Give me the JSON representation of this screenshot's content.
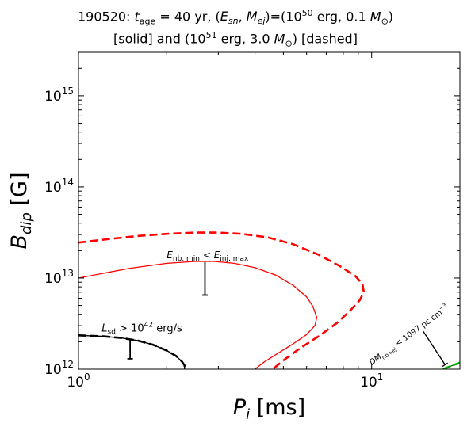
{
  "chart_data": {
    "type": "line",
    "title_line1": "190520: t_age = 40 yr, (E_sn, M_ej)=(10^50 erg, 0.1 M☉)",
    "title_line2": "[solid] and (10^51 erg, 3.0 M☉) [dashed]",
    "xlabel": "P_i [ms]",
    "ylabel": "B_dip [G]",
    "x_scale": "log",
    "y_scale": "log",
    "xlim": [
      1,
      20
    ],
    "ylim": [
      1000000000000.0,
      3000000000000000.0
    ],
    "grid": false,
    "xticks": [
      {
        "value": 1,
        "label": "10^0"
      },
      {
        "value": 10,
        "label": "10^1"
      }
    ],
    "yticks": [
      {
        "value": 1000000000000.0,
        "label": "10^12"
      },
      {
        "value": 10000000000000.0,
        "label": "10^13"
      },
      {
        "value": 100000000000000.0,
        "label": "10^14"
      },
      {
        "value": 1000000000000000.0,
        "label": "10^15"
      }
    ],
    "annotations": [
      {
        "name": "Enb-annotation",
        "text": "E_nb,min < E_inj,max",
        "x": 2.0,
        "y": 16500000000000.0
      },
      {
        "name": "Lsd-annotation",
        "text": "L_sd > 10^42 erg/s",
        "x": 1.2,
        "y": 2600000000000.0
      },
      {
        "name": "DM-annotation",
        "text": "DM_nb+ej < 1097 pc cm^-3",
        "x": 10.0,
        "y": 1100000000000.0
      }
    ],
    "series": [
      {
        "key": "enb-solid",
        "color": "#ff0000",
        "dashed": false,
        "width": 1.3,
        "x": [
          1.0,
          1.2,
          1.5,
          2.0,
          2.5,
          2.9,
          3.4,
          4.0,
          4.7,
          5.4,
          6.0,
          6.3,
          6.5,
          6.4,
          6.0,
          5.4,
          4.8,
          4.3,
          4.0
        ],
        "y": [
          10000000000000.0,
          11200000000000.0,
          12800000000000.0,
          14500000000000.0,
          15200000000000.0,
          15200000000000.0,
          14500000000000.0,
          13000000000000.0,
          10800000000000.0,
          8300000000000.0,
          6200000000000.0,
          4900000000000.0,
          3700000000000.0,
          3000000000000.0,
          2400000000000.0,
          1900000000000.0,
          1500000000000.0,
          1200000000000.0,
          1000000000000.0
        ]
      },
      {
        "key": "enb-dashed",
        "color": "#ff0000",
        "dashed": true,
        "width": 2.6,
        "x": [
          1.0,
          1.3,
          1.6,
          2.0,
          2.5,
          3.0,
          3.6,
          4.4,
          5.4,
          6.6,
          7.8,
          8.8,
          9.3,
          9.4,
          9.1,
          8.4,
          7.6,
          6.6,
          5.7,
          5.0,
          4.6
        ],
        "y": [
          24500000000000.0,
          27000000000000.0,
          29000000000000.0,
          30500000000000.0,
          31500000000000.0,
          31500000000000.0,
          30500000000000.0,
          28000000000000.0,
          23500000000000.0,
          18000000000000.0,
          13500000000000.0,
          10500000000000.0,
          8600000000000.0,
          7000000000000.0,
          5700000000000.0,
          4300000000000.0,
          3200000000000.0,
          2300000000000.0,
          1700000000000.0,
          1250000000000.0,
          1000000000000.0
        ]
      },
      {
        "key": "lsd-solid",
        "color": "#000000",
        "dashed": false,
        "width": 1.4,
        "x": [
          1.0,
          1.2,
          1.4,
          1.6,
          1.8,
          2.0,
          2.15,
          2.25,
          2.3,
          2.3
        ],
        "y": [
          2350000000000.0,
          2300000000000.0,
          2200000000000.0,
          2050000000000.0,
          1850000000000.0,
          1600000000000.0,
          1400000000000.0,
          1220000000000.0,
          1100000000000.0,
          1000000000000.0
        ]
      },
      {
        "key": "lsd-dashed",
        "color": "#000000",
        "dashed": true,
        "width": 2.6,
        "x": [
          1.0,
          1.2,
          1.4,
          1.6,
          1.8,
          2.0,
          2.15,
          2.25,
          2.3,
          2.3
        ],
        "y": [
          2350000000000.0,
          2300000000000.0,
          2200000000000.0,
          2050000000000.0,
          1850000000000.0,
          1600000000000.0,
          1400000000000.0,
          1220000000000.0,
          1100000000000.0,
          1000000000000.0
        ]
      },
      {
        "key": "dm-solid",
        "color": "#007700",
        "dashed": false,
        "width": 1.4,
        "x": [
          17.5,
          18.5,
          19.3,
          20.0
        ],
        "y": [
          1000000000000.0,
          1070000000000.0,
          1130000000000.0,
          1180000000000.0
        ]
      },
      {
        "key": "dm-dashed",
        "color": "#00aa00",
        "dashed": true,
        "width": 2.6,
        "x": [
          17.5,
          18.5,
          19.3,
          20.0
        ],
        "y": [
          1000000000000.0,
          1070000000000.0,
          1130000000000.0,
          1180000000000.0
        ]
      }
    ],
    "markers": [
      {
        "name": "enb-arrow",
        "x": 2.7,
        "y_from": 15000000000000.0,
        "y_to": 6500000000000.0
      },
      {
        "name": "lsd-arrow",
        "x": 1.5,
        "y_from": 2100000000000.0,
        "y_to": 1300000000000.0
      },
      {
        "name": "dm-arrow",
        "x_from": 15.0,
        "y_from": 2600000000000.0,
        "x_to": 17.8,
        "y_to": 1120000000000.0
      }
    ]
  }
}
